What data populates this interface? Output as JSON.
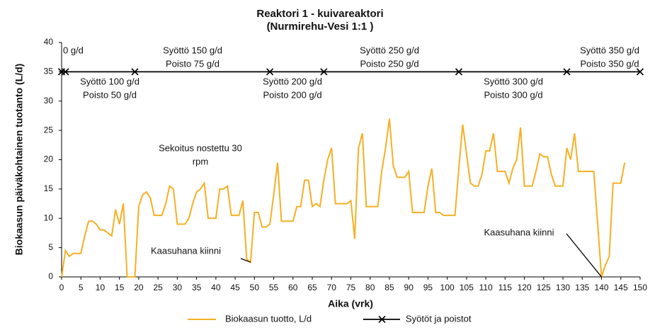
{
  "chart_data": {
    "type": "line",
    "title": [
      "Reaktori 1 - kuivareaktori",
      "(Nurmirehu-Vesi 1:1 )"
    ],
    "x_label": "Aika (vrk)",
    "y_label": "Biokaasun päiväkohtainen tuotanto (L/d)",
    "xlim": [
      0,
      150
    ],
    "xticks": [
      0,
      5,
      10,
      15,
      20,
      25,
      30,
      35,
      40,
      45,
      50,
      55,
      60,
      65,
      70,
      75,
      80,
      85,
      90,
      95,
      100,
      105,
      110,
      115,
      120,
      125,
      130,
      135,
      140,
      145,
      150
    ],
    "ylim": [
      0,
      40
    ],
    "yticks": [
      0,
      5,
      10,
      15,
      20,
      25,
      30,
      35,
      40
    ],
    "series": [
      {
        "name": "Biokaasun tuotto, L/d",
        "color": "#f5b025",
        "x": [
          0,
          1,
          2,
          3,
          4,
          5,
          6,
          7,
          8,
          9,
          10,
          11,
          12,
          13,
          14,
          15,
          16,
          17,
          18,
          19,
          20,
          21,
          22,
          23,
          24,
          25,
          26,
          27,
          28,
          29,
          30,
          31,
          32,
          33,
          34,
          35,
          36,
          37,
          38,
          39,
          40,
          41,
          42,
          43,
          44,
          45,
          46,
          47,
          48,
          49,
          50,
          51,
          52,
          53,
          54,
          55,
          56,
          57,
          58,
          59,
          60,
          61,
          62,
          63,
          64,
          65,
          66,
          67,
          68,
          69,
          70,
          71,
          72,
          73,
          74,
          75,
          76,
          77,
          78,
          79,
          80,
          81,
          82,
          83,
          84,
          85,
          86,
          87,
          88,
          89,
          90,
          91,
          92,
          93,
          94,
          95,
          96,
          97,
          98,
          99,
          100,
          101,
          102,
          103,
          104,
          105,
          106,
          107,
          108,
          109,
          110,
          111,
          112,
          113,
          114,
          115,
          116,
          117,
          118,
          119,
          120,
          121,
          122,
          123,
          124,
          125,
          126,
          127,
          128,
          129,
          130,
          131,
          132,
          133,
          134,
          135,
          136,
          137,
          138,
          139,
          140,
          141,
          142,
          143,
          144,
          145,
          146
        ],
        "values": [
          0,
          4.5,
          3.5,
          4,
          4,
          4,
          7,
          9.5,
          9.5,
          9,
          8,
          8,
          7.5,
          7,
          11.5,
          9,
          12.5,
          0,
          0,
          0,
          12,
          14,
          14.5,
          13.5,
          10.5,
          10.5,
          10.5,
          12.5,
          15.5,
          15,
          9,
          9,
          9,
          10,
          12.5,
          14.5,
          15,
          16,
          10,
          10,
          10,
          15,
          15,
          15.5,
          10.5,
          10.5,
          10.5,
          13,
          3,
          2.5,
          11,
          11,
          8.5,
          8.5,
          9,
          14,
          19.5,
          9.5,
          9.5,
          9.5,
          9.5,
          12,
          12,
          16.5,
          16.5,
          12,
          12.5,
          12,
          16.5,
          20,
          22,
          12.5,
          12.5,
          12.5,
          12.5,
          13,
          6.5,
          22,
          24.5,
          12,
          12,
          12,
          12,
          18,
          22,
          27,
          19,
          17,
          17,
          17,
          18,
          11,
          11,
          11,
          11,
          15.5,
          18.5,
          11,
          11,
          10.5,
          10.5,
          10.5,
          10.5,
          18.5,
          26,
          21,
          16,
          15.5,
          15.5,
          17.5,
          21.5,
          21.5,
          24.5,
          18,
          18,
          18,
          16,
          18.5,
          20,
          25.5,
          15.5,
          15.5,
          15.5,
          18,
          21,
          20.5,
          20.5,
          17.5,
          15.5,
          15.5,
          15.5,
          22,
          20,
          24.5,
          18,
          18,
          18,
          18,
          18,
          9,
          0,
          2,
          3.5,
          16,
          16,
          16,
          19.5
        ]
      },
      {
        "name": "Syötöt ja poistot",
        "color": "#000000",
        "x": [
          0,
          1,
          19,
          54,
          68,
          103,
          131,
          150
        ],
        "values": [
          35,
          35,
          35,
          35,
          35,
          35,
          35,
          35
        ]
      }
    ],
    "annotations": [
      {
        "text": [
          "0 g/d"
        ]
      },
      {
        "text": [
          "Syöttö 100 g/d",
          "Poisto 50 g/d"
        ]
      },
      {
        "text": [
          "Syöttö 150 g/d",
          "Poisto 75 g/d"
        ]
      },
      {
        "text": [
          "Syöttö 200 g/d",
          "Poisto 200 g/d"
        ]
      },
      {
        "text": [
          "Syöttö 250 g/d",
          "Poisto 250 g/d"
        ]
      },
      {
        "text": [
          "Syöttö 300 g/d",
          "Poisto 300 g/d"
        ]
      },
      {
        "text": [
          "Syöttö 350 g/d",
          "Poisto 350 g/d"
        ]
      },
      {
        "text": [
          "Sekoitus nostettu 30",
          "rpm"
        ]
      },
      {
        "text": [
          "Kaasuhana kiinni"
        ],
        "x": 49,
        "y": 2.5
      },
      {
        "text": [
          "Kaasuhana kiinni"
        ],
        "x": 140,
        "y": 0
      }
    ]
  }
}
